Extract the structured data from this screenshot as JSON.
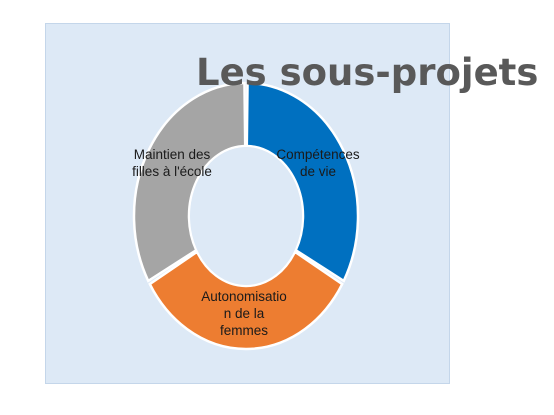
{
  "page": {
    "title": "Les sous-projets"
  },
  "chart_data": {
    "type": "pie",
    "variant": "donut",
    "title": "Les sous-projets",
    "categories": [
      "Compétences de vie",
      "Autonomisation de la femmes",
      "Maintien des filles à l'école"
    ],
    "label_lines": [
      [
        "Compétences",
        "de vie"
      ],
      [
        "Autonomisatio",
        "n de la",
        "femmes"
      ],
      [
        "Maintien des",
        "filles à l'école"
      ]
    ],
    "values": [
      33.3,
      33.3,
      33.3
    ],
    "colors": [
      "#0070c0",
      "#ed7d31",
      "#a5a5a5"
    ],
    "start": "top",
    "direction": "clockwise",
    "legend": "none"
  }
}
